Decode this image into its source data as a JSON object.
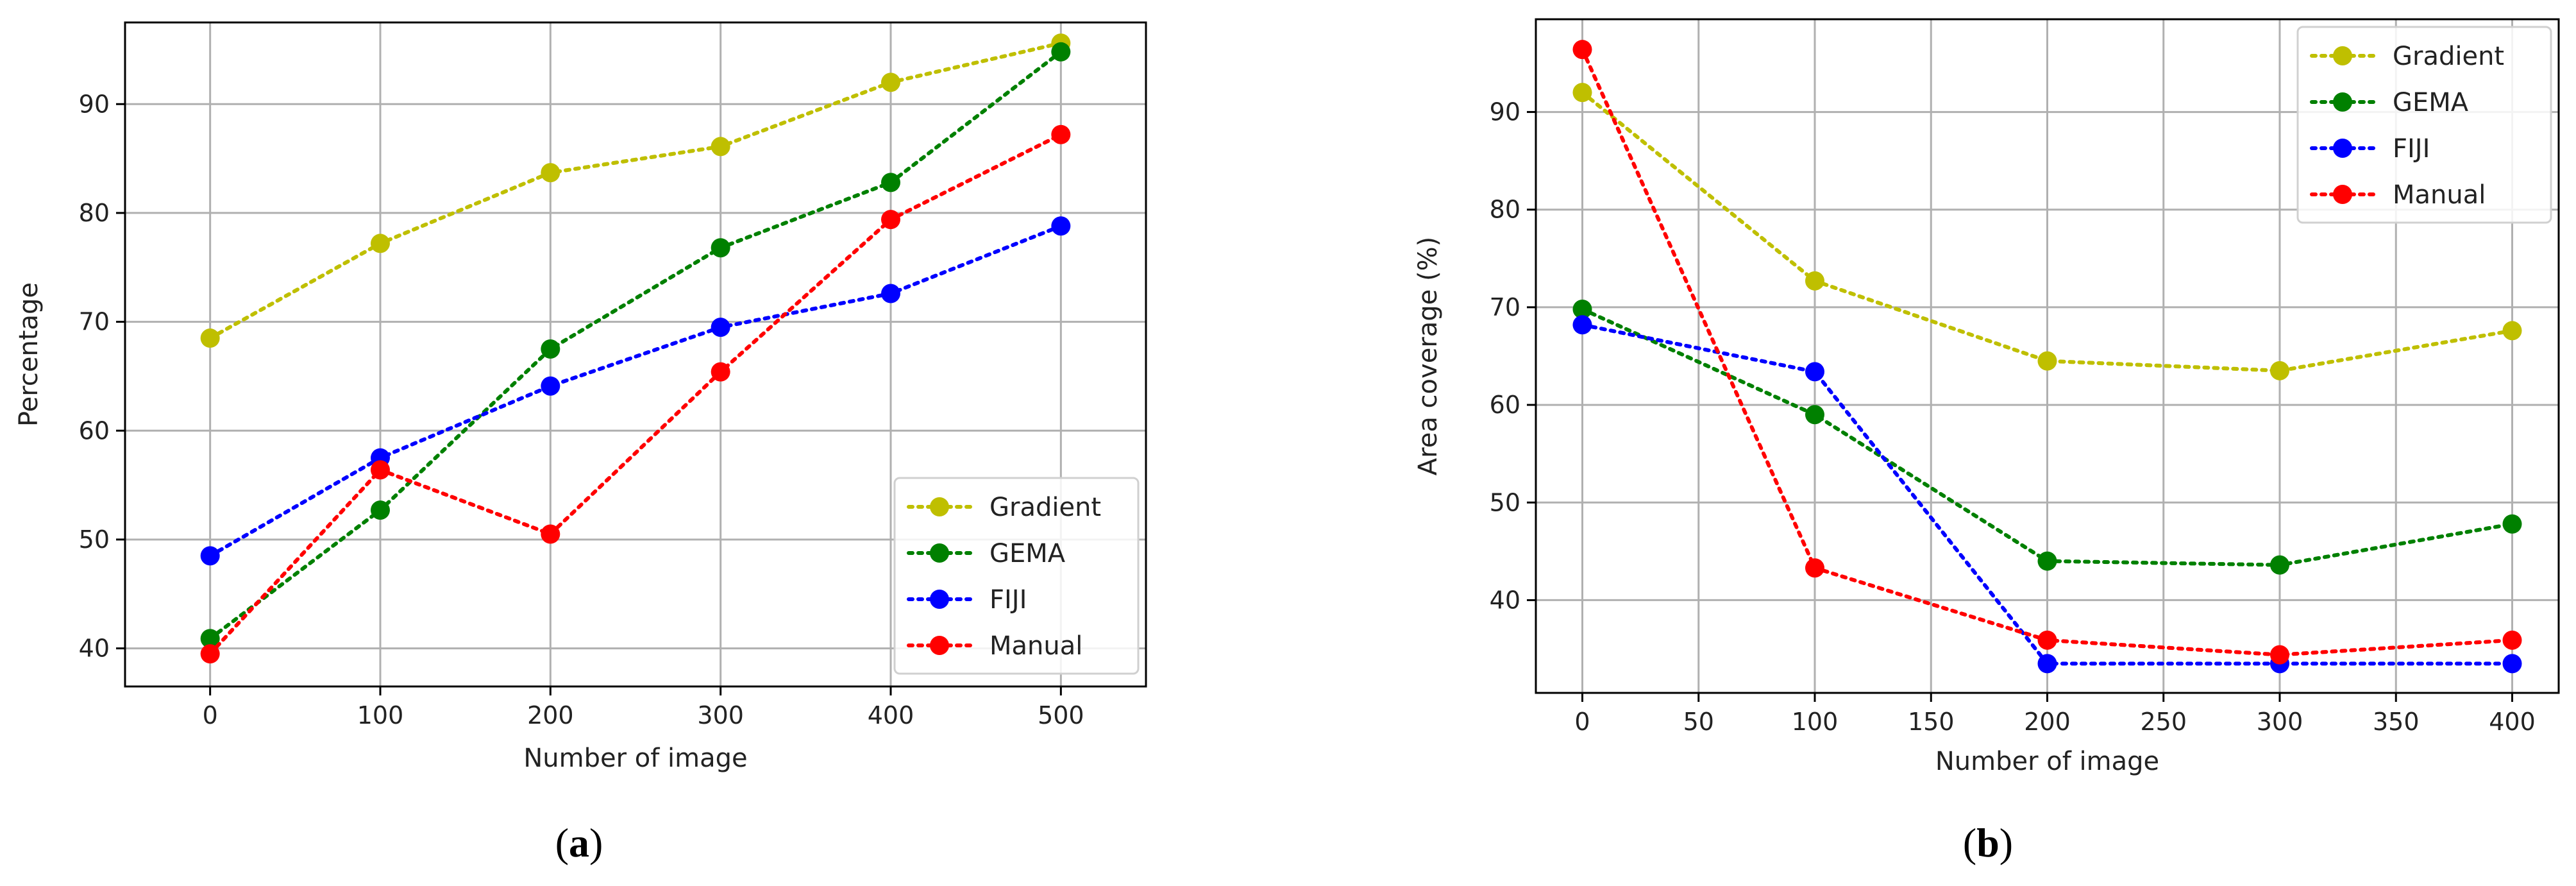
{
  "chart_data": [
    {
      "type": "line",
      "panel": "a",
      "caption": {
        "open": "(",
        "letter": "a",
        "close": ")"
      },
      "title": "",
      "xlabel": "Number of image",
      "ylabel": "Percentage",
      "x": [
        0,
        100,
        200,
        300,
        400,
        500
      ],
      "xlim": [
        -50,
        550
      ],
      "ylim": [
        36.5,
        97.5
      ],
      "xticks": [
        0,
        100,
        200,
        300,
        400,
        500
      ],
      "yticks": [
        40,
        50,
        60,
        70,
        80,
        90
      ],
      "grid": true,
      "legend_position": "lower-right",
      "series": [
        {
          "name": "Gradient",
          "color": "#bfbf00",
          "values": [
            68.5,
            77.2,
            83.7,
            86.1,
            92.0,
            95.6
          ]
        },
        {
          "name": "GEMA",
          "color": "#008000",
          "values": [
            40.9,
            52.7,
            67.5,
            76.8,
            82.8,
            94.8
          ]
        },
        {
          "name": "FIJI",
          "color": "#0000ff",
          "values": [
            48.5,
            57.5,
            64.1,
            69.5,
            72.6,
            78.8
          ]
        },
        {
          "name": "Manual",
          "color": "#ff0000",
          "values": [
            39.5,
            56.4,
            50.5,
            65.4,
            79.4,
            87.2
          ]
        }
      ]
    },
    {
      "type": "line",
      "panel": "b",
      "caption": {
        "open": "(",
        "letter": "b",
        "close": ")"
      },
      "title": "",
      "xlabel": "Number of image",
      "ylabel": "Area coverage (%)",
      "x": [
        0,
        100,
        200,
        300,
        400
      ],
      "xlim": [
        -20,
        420
      ],
      "ylim": [
        30.5,
        99.5
      ],
      "xticks": [
        0,
        50,
        100,
        150,
        200,
        250,
        300,
        350,
        400
      ],
      "yticks": [
        40,
        50,
        60,
        70,
        80,
        90
      ],
      "grid": true,
      "legend_position": "upper-right",
      "series": [
        {
          "name": "Gradient",
          "color": "#bfbf00",
          "values": [
            92.0,
            72.7,
            64.5,
            63.5,
            67.6
          ]
        },
        {
          "name": "GEMA",
          "color": "#008000",
          "values": [
            69.8,
            59.0,
            44.0,
            43.6,
            47.8
          ]
        },
        {
          "name": "FIJI",
          "color": "#0000ff",
          "values": [
            68.2,
            63.4,
            33.5,
            33.5,
            33.5
          ]
        },
        {
          "name": "Manual",
          "color": "#ff0000",
          "values": [
            96.4,
            43.3,
            35.9,
            34.4,
            35.9
          ]
        }
      ]
    }
  ]
}
